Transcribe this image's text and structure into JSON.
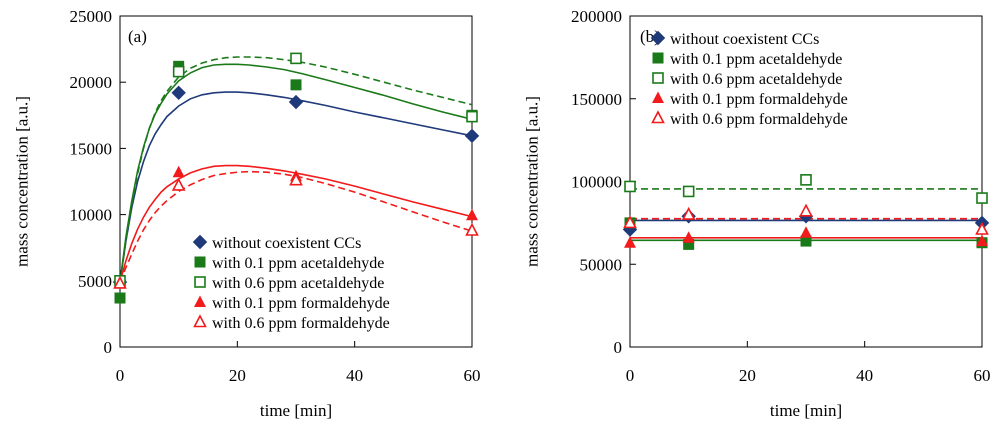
{
  "colors": {
    "navy": "#1f3a7a",
    "green": "#1a7a1a",
    "red": "#f21a1a"
  },
  "chart_data": [
    {
      "type": "scatter",
      "panel_label": "(a)",
      "xlabel": "time [min]",
      "ylabel": "mass concentration [a.u.]",
      "xlim": [
        0,
        60
      ],
      "ylim": [
        0,
        25000
      ],
      "xticks": [
        "0",
        "20",
        "40",
        "60"
      ],
      "yticks": [
        "0",
        "5000",
        "10000",
        "15000",
        "20000",
        "25000"
      ],
      "legend_position": "bottom-right",
      "series": [
        {
          "name": "without coexistent CCs",
          "marker": "diamond-filled",
          "color": "#1f3a7a",
          "line": "solid",
          "x": [
            0,
            10,
            30,
            60
          ],
          "values": [
            4900,
            19200,
            18500,
            15950
          ],
          "fit": {
            "x": [
              0,
              1,
              2,
              3,
              4,
              5,
              6,
              7,
              8,
              10,
              12,
              14,
              16,
              18,
              20,
              22,
              25,
              28,
              31,
              35,
              40,
              45,
              50,
              55,
              60
            ],
            "y": [
              4900,
              8000,
              10500,
              12500,
              14000,
              15200,
              16100,
              16800,
              17400,
              18200,
              18750,
              19050,
              19200,
              19250,
              19250,
              19200,
              19050,
              18850,
              18600,
              18250,
              17750,
              17300,
              16850,
              16400,
              15950
            ]
          }
        },
        {
          "name": "with 0.1 ppm acetaldehyde",
          "marker": "square-filled",
          "color": "#1a7a1a",
          "line": "solid",
          "x": [
            0,
            10,
            30,
            60
          ],
          "values": [
            3700,
            21200,
            19800,
            17500
          ],
          "fit": {
            "x": [
              0,
              1,
              2,
              3,
              4,
              5,
              6,
              7,
              8,
              10,
              12,
              14,
              16,
              18,
              20,
              22,
              25,
              28,
              31,
              35,
              40,
              45,
              50,
              55,
              60
            ],
            "y": [
              4900,
              8300,
              11000,
              13300,
              15100,
              16500,
              17600,
              18400,
              19100,
              20100,
              20700,
              21100,
              21300,
              21350,
              21350,
              21300,
              21150,
              20950,
              20650,
              20200,
              19600,
              19000,
              18350,
              17750,
              17200
            ]
          }
        },
        {
          "name": "with 0.6 ppm acetaldehyde",
          "marker": "square-open",
          "color": "#1a7a1a",
          "line": "dashed",
          "x": [
            0,
            10,
            30,
            60
          ],
          "values": [
            5000,
            20800,
            21800,
            17400
          ],
          "fit": {
            "x": [
              0,
              1,
              2,
              3,
              4,
              5,
              6,
              7,
              8,
              10,
              12,
              14,
              16,
              18,
              20,
              22,
              25,
              28,
              31,
              35,
              40,
              45,
              50,
              55,
              60
            ],
            "y": [
              4900,
              8000,
              10800,
              13100,
              15000,
              16500,
              17700,
              18600,
              19300,
              20400,
              21050,
              21450,
              21700,
              21850,
              21900,
              21900,
              21850,
              21700,
              21500,
              21150,
              20600,
              20000,
              19400,
              18850,
              18300
            ]
          }
        },
        {
          "name": "with 0.1 ppm formaldehyde",
          "marker": "triangle-filled",
          "color": "#f21a1a",
          "line": "solid",
          "x": [
            0,
            10,
            30,
            60
          ],
          "values": [
            4850,
            13200,
            12900,
            9950
          ],
          "fit": {
            "x": [
              0,
              1,
              2,
              3,
              4,
              5,
              6,
              7,
              8,
              10,
              12,
              14,
              16,
              18,
              20,
              22,
              25,
              28,
              31,
              35,
              40,
              45,
              50,
              55,
              60
            ],
            "y": [
              4900,
              6500,
              7800,
              8900,
              9800,
              10550,
              11150,
              11700,
              12100,
              12700,
              13150,
              13450,
              13650,
              13700,
              13700,
              13650,
              13500,
              13300,
              13050,
              12700,
              12150,
              11550,
              10950,
              10400,
              9850
            ]
          }
        },
        {
          "name": "with 0.6 ppm formaldehyde",
          "marker": "triangle-open",
          "color": "#f21a1a",
          "line": "dashed",
          "x": [
            0,
            10,
            30,
            60
          ],
          "values": [
            4800,
            12200,
            12600,
            8800
          ],
          "fit": {
            "x": [
              0,
              1,
              2,
              3,
              4,
              5,
              6,
              7,
              8,
              10,
              12,
              14,
              16,
              18,
              20,
              22,
              25,
              28,
              31,
              35,
              40,
              45,
              50,
              55,
              60
            ],
            "y": [
              4900,
              6000,
              7000,
              8000,
              8850,
              9550,
              10150,
              10650,
              11050,
              11750,
              12250,
              12650,
              12950,
              13100,
              13200,
              13250,
              13200,
              13050,
              12800,
              12350,
              11700,
              10950,
              10200,
              9450,
              8750
            ]
          }
        }
      ]
    },
    {
      "type": "scatter",
      "panel_label": "(b)",
      "xlabel": "time [min]",
      "ylabel": "mass concentration [a.u.]",
      "xlim": [
        0,
        60
      ],
      "ylim": [
        0,
        200000
      ],
      "xticks": [
        "0",
        "20",
        "40",
        "60"
      ],
      "yticks": [
        "0",
        "50000",
        "100000",
        "150000",
        "200000"
      ],
      "legend_position": "top-right",
      "series": [
        {
          "name": "without coexistent CCs",
          "marker": "diamond-filled",
          "color": "#1f3a7a",
          "line": "solid",
          "x": [
            0,
            10,
            30,
            60
          ],
          "values": [
            71000,
            79000,
            79000,
            75000
          ],
          "fit": {
            "x": [
              0,
              60
            ],
            "y": [
              76500,
              76500
            ]
          }
        },
        {
          "name": "with 0.1 ppm acetaldehyde",
          "marker": "square-filled",
          "color": "#1a7a1a",
          "line": "solid",
          "x": [
            0,
            10,
            30,
            60
          ],
          "values": [
            75000,
            62000,
            64000,
            63000
          ],
          "fit": {
            "x": [
              0,
              60
            ],
            "y": [
              64500,
              64500
            ]
          }
        },
        {
          "name": "with 0.6 ppm acetaldehyde",
          "marker": "square-open",
          "color": "#1a7a1a",
          "line": "dashed",
          "x": [
            0,
            10,
            30,
            60
          ],
          "values": [
            97000,
            94000,
            101000,
            90000
          ],
          "fit": {
            "x": [
              0,
              60
            ],
            "y": [
              95500,
              95500
            ]
          }
        },
        {
          "name": "with 0.1 ppm formaldehyde",
          "marker": "triangle-filled",
          "color": "#f21a1a",
          "line": "solid",
          "x": [
            0,
            10,
            30,
            60
          ],
          "values": [
            63000,
            66000,
            69000,
            64000
          ],
          "fit": {
            "x": [
              0,
              60
            ],
            "y": [
              66000,
              66000
            ]
          }
        },
        {
          "name": "with 0.6 ppm formaldehyde",
          "marker": "triangle-open",
          "color": "#f21a1a",
          "line": "dashed",
          "x": [
            0,
            10,
            30,
            60
          ],
          "values": [
            75000,
            80000,
            82000,
            71000
          ],
          "fit": {
            "x": [
              0,
              60
            ],
            "y": [
              77500,
              77500
            ]
          }
        }
      ]
    }
  ]
}
